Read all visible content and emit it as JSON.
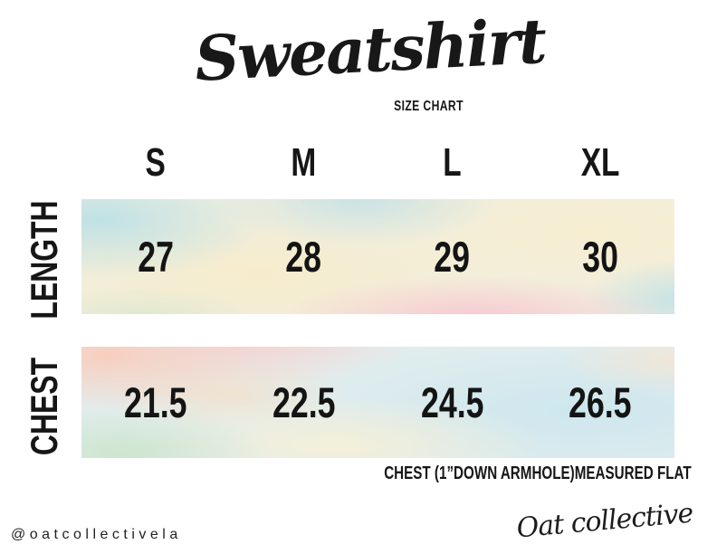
{
  "header": {
    "title": "Sweatshirt",
    "subtitle": "SIZE CHART"
  },
  "chart_data": {
    "type": "table",
    "columns": [
      "S",
      "M",
      "L",
      "XL"
    ],
    "rows": [
      {
        "label": "LENGTH",
        "values": [
          "27",
          "28",
          "29",
          "30"
        ]
      },
      {
        "label": "CHEST",
        "values": [
          "21.5",
          "22.5",
          "24.5",
          "26.5"
        ]
      }
    ]
  },
  "footer": {
    "note": "CHEST (1”DOWN ARMHOLE)MEASURED FLAT",
    "handle": "@oatcollectivela",
    "brand": "Oat collective"
  },
  "colors": {
    "ink": "#161616",
    "background": "#ffffff",
    "watercolor_blue": "#cfe6ec",
    "watercolor_pink": "#f8cdd3",
    "watercolor_peach": "#f8d5c0",
    "watercolor_yellow": "#f6eecb",
    "watercolor_mint": "#d5e7d2"
  }
}
